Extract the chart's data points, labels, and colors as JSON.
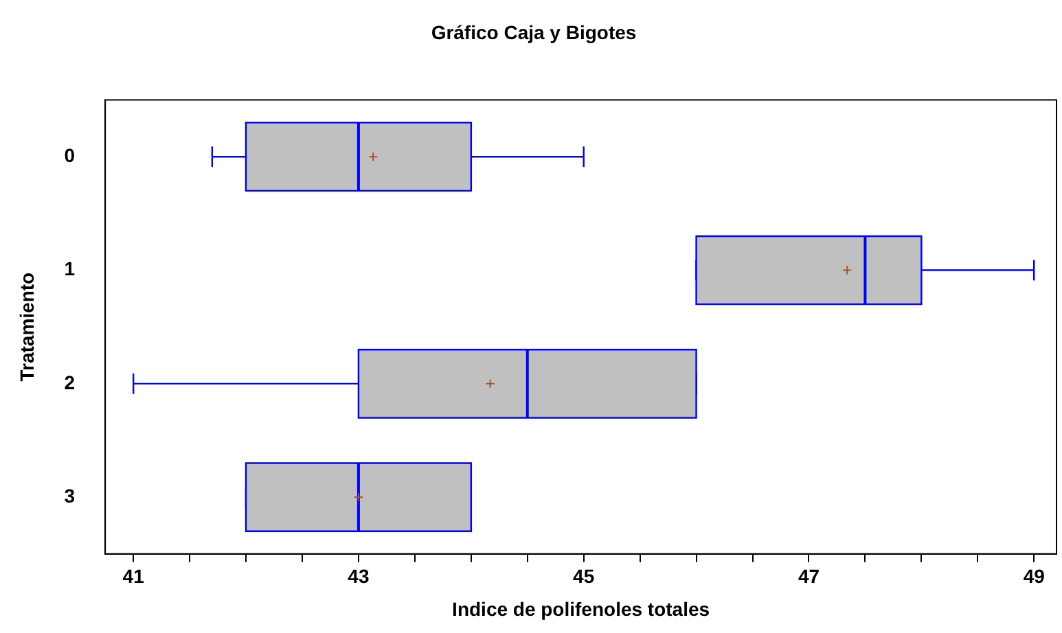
{
  "chart_data": {
    "type": "box",
    "orientation": "horizontal",
    "title": "Gráfico Caja y Bigotes",
    "xlabel": "Indice de polifenoles totales",
    "ylabel": "Tratamiento",
    "categories": [
      "0",
      "1",
      "2",
      "3"
    ],
    "series": [
      {
        "color": "#c0c0c0",
        "boxes": [
          {
            "low": 41.7,
            "q1": 42,
            "median": 43,
            "q3": 44,
            "high": 45,
            "mean": 43.13
          },
          {
            "low": 46,
            "q1": 46,
            "median": 47.5,
            "q3": 48,
            "high": 49,
            "mean": 47.34
          },
          {
            "low": 41,
            "q1": 43,
            "median": 44.5,
            "q3": 46,
            "high": 46,
            "mean": 44.17
          },
          {
            "low": 42,
            "q1": 42,
            "median": 43,
            "q3": 44,
            "high": 44,
            "mean": 43
          }
        ]
      }
    ],
    "xlim": [
      40.75,
      49.2
    ],
    "xticks": [
      41,
      {
        "value": 41.5,
        "label": null
      },
      {
        "value": 42,
        "label": null
      },
      {
        "value": 42.5,
        "label": null
      },
      43,
      {
        "value": 43.5,
        "label": null
      },
      {
        "value": 44,
        "label": null
      },
      {
        "value": 44.5,
        "label": null
      },
      45,
      {
        "value": 45.5,
        "label": null
      },
      {
        "value": 46,
        "label": null
      },
      {
        "value": 46.5,
        "label": null
      },
      47,
      {
        "value": 47.5,
        "label": null
      },
      {
        "value": 48,
        "label": null
      },
      {
        "value": 48.5,
        "label": null
      },
      49
    ],
    "grid": false,
    "legend": false
  }
}
